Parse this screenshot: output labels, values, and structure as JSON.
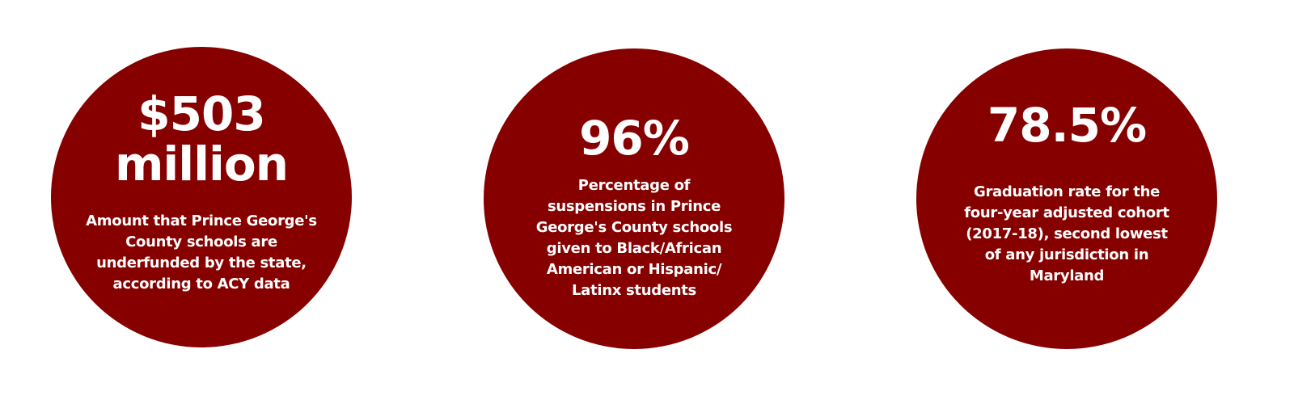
{
  "stats": [
    {
      "value_line1": "$503",
      "value_line2": "million",
      "description": "Amount that Prince George's County schools are underfunded by the state, according to ACY data"
    },
    {
      "value": "96%",
      "description": "Percentage of suspensions in Prince George's County schools given to Black/African American or Hispanic/ Latinx students"
    },
    {
      "value": "78.5%",
      "description": "Graduation rate for the four-year adjusted cohort (2017-18), second lowest of any jurisdiction in Maryland"
    }
  ],
  "colors": {
    "circle": "#860000",
    "text": "#ffffff",
    "background": "#ffffff"
  }
}
